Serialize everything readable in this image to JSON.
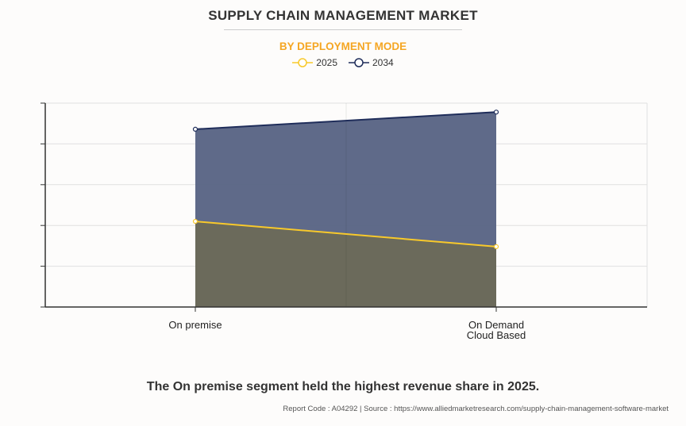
{
  "title": "SUPPLY CHAIN MANAGEMENT MARKET",
  "subtitle": "BY DEPLOYMENT MODE",
  "caption": "The On premise segment held the highest revenue share in 2025.",
  "source": "Report Code : A04292  |  Source : https://www.alliedmarketresearch.com/supply-chain-management-software-market",
  "chart_data": {
    "type": "area",
    "categories": [
      "On premise",
      "On Demand Cloud Based"
    ],
    "category_lines": [
      [
        "On premise"
      ],
      [
        "On Demand",
        "Cloud Based"
      ]
    ],
    "ylim": [
      0,
      5
    ],
    "grid": true,
    "legend": "top",
    "series": [
      {
        "name": "2034",
        "values": [
          4.36,
          4.78
        ],
        "color": "#1f2d5a",
        "fill": "#5a6585"
      },
      {
        "name": "2025",
        "values": [
          2.1,
          1.48
        ],
        "color": "#f8c92b",
        "fill": "#6b6a5a"
      }
    ]
  }
}
